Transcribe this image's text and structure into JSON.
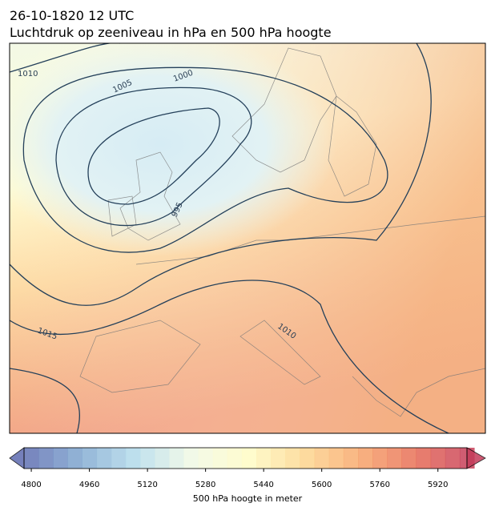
{
  "header": {
    "line1": "26-10-1820 12 UTC",
    "line2": "Luchtdruk op zeeniveau in hPa en 500 hPa hoogte"
  },
  "map": {
    "contour_labels": [
      1010,
      1005,
      1000,
      995,
      1015,
      1010
    ]
  },
  "colorbar": {
    "label": "500 hPa hoogte in meter",
    "clim": [
      4780,
      6000
    ],
    "level_step": 40,
    "ticks": [
      4800,
      4960,
      5120,
      5280,
      5440,
      5600,
      5760,
      5920
    ],
    "colors": [
      "#5e6bb0",
      "#7fa8d0",
      "#b5dcec",
      "#f1f9e4",
      "#fffbc4",
      "#fdd68e",
      "#f7a46a",
      "#e66a55",
      "#c43b5a"
    ]
  }
}
